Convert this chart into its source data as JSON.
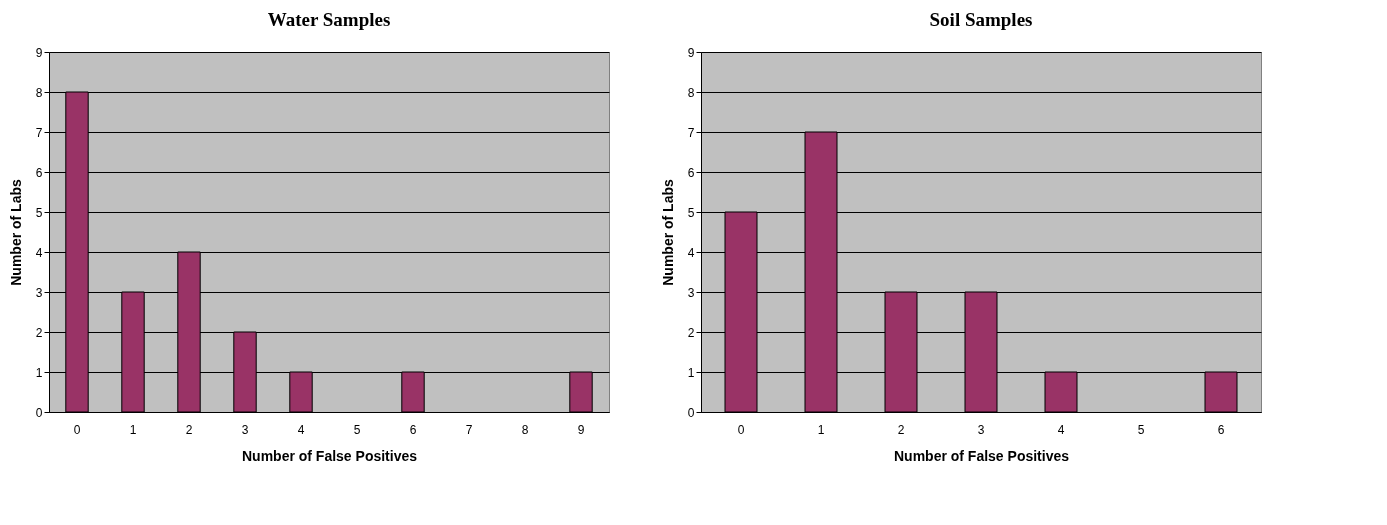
{
  "chart_data": [
    {
      "type": "bar",
      "title": "Water Samples",
      "xlabel": "Number of False Positives",
      "ylabel": "Number of Labs",
      "categories": [
        "0",
        "1",
        "2",
        "3",
        "4",
        "5",
        "6",
        "7",
        "8",
        "9"
      ],
      "values": [
        8,
        3,
        4,
        2,
        1,
        0,
        1,
        0,
        0,
        1
      ],
      "color": "#993366",
      "ylim": [
        0,
        9
      ],
      "yticks": [
        0,
        1,
        2,
        3,
        4,
        5,
        6,
        7,
        8,
        9
      ],
      "grid": "y"
    },
    {
      "type": "bar",
      "title": "Soil Samples",
      "xlabel": "Number of False Positives",
      "ylabel": "Number of Labs",
      "categories": [
        "0",
        "1",
        "2",
        "3",
        "4",
        "5",
        "6"
      ],
      "values": [
        5,
        7,
        3,
        3,
        1,
        0,
        1
      ],
      "color": "#993366",
      "ylim": [
        0,
        9
      ],
      "yticks": [
        0,
        1,
        2,
        3,
        4,
        5,
        6,
        7,
        8,
        9
      ],
      "grid": "y"
    }
  ]
}
